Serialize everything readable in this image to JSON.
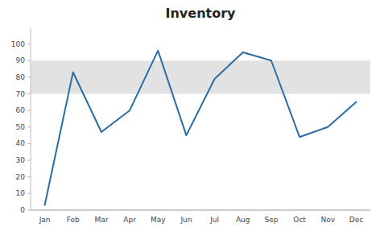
{
  "chart_data": {
    "type": "line",
    "title": "Inventory",
    "categories": [
      "Jan",
      "Feb",
      "Mar",
      "Apr",
      "May",
      "Jun",
      "Jul",
      "Aug",
      "Sep",
      "Oct",
      "Nov",
      "Dec"
    ],
    "values": [
      3,
      83,
      47,
      60,
      96,
      45,
      79,
      95,
      90,
      44,
      50,
      65
    ],
    "color": "#2E6CA4",
    "band_lower": 70,
    "band_upper": 90,
    "ylim": [
      0,
      110
    ],
    "yticks": [
      0,
      10,
      20,
      30,
      40,
      50,
      60,
      70,
      80,
      90,
      100
    ],
    "grid": false
  }
}
